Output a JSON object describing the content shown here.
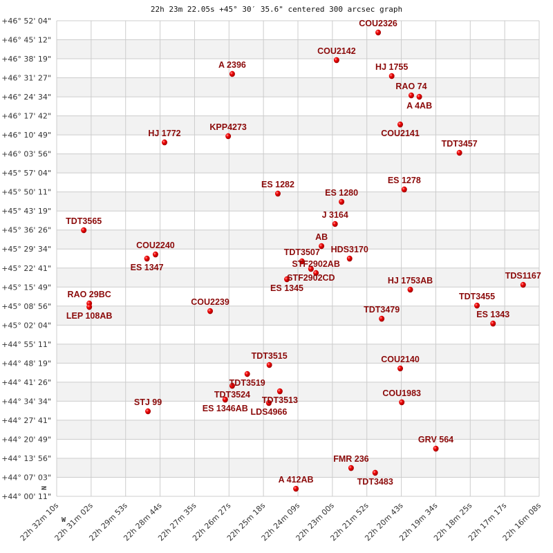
{
  "chart_data": {
    "type": "scatter",
    "title": "22h 23m 22.05s +45° 30′ 35.6\" centered 300 arcsec graph",
    "compass": {
      "north": "N",
      "west": "W"
    },
    "x_ticks": [
      "22h 32m 10s",
      "22h 31m 02s",
      "22h 29m 53s",
      "22h 28m 44s",
      "22h 27m 35s",
      "22h 26m 27s",
      "22h 25m 18s",
      "22h 24m 09s",
      "22h 23m 00s",
      "22h 21m 52s",
      "22h 20m 43s",
      "22h 19m 34s",
      "22h 18m 25s",
      "22h 17m 17s",
      "22h 16m 08s"
    ],
    "y_ticks": [
      "+46° 52' 04\"",
      "+46° 45' 12\"",
      "+46° 38' 19\"",
      "+46° 31' 27\"",
      "+46° 24' 34\"",
      "+46° 17' 42\"",
      "+46° 10' 49\"",
      "+46° 03' 56\"",
      "+45° 57' 04\"",
      "+45° 50' 11\"",
      "+45° 43' 19\"",
      "+45° 36' 26\"",
      "+45° 29' 34\"",
      "+45° 22' 41\"",
      "+45° 15' 49\"",
      "+45° 08' 56\"",
      "+45° 02' 04\"",
      "+44° 55' 11\"",
      "+44° 48' 19\"",
      "+44° 41' 26\"",
      "+44° 34' 34\"",
      "+44° 27' 41\"",
      "+44° 20' 49\"",
      "+44° 13' 56\"",
      "+44° 07' 03\"",
      "+44° 00' 11\""
    ],
    "xlim": [
      "22h 32m 10s",
      "22h 16m 08s"
    ],
    "ylim": [
      "+44° 00' 11\"",
      "+46° 52' 04\""
    ],
    "grid": true,
    "band_color": "#f2f2f2",
    "grid_color": "#cccccc",
    "point_color": "#e00000",
    "label_color": "#8b0a0a",
    "points": [
      {
        "name": "COU2326",
        "ra": "22h 21m 29s",
        "dec": "+46° 47' 49\""
      },
      {
        "name": "COU2142",
        "ra": "22h 22m 52s",
        "dec": "+46° 37' 50\""
      },
      {
        "name": "A  2396",
        "ra": "22h 26m 20s",
        "dec": "+46° 32' 50\""
      },
      {
        "name": "HJ 1755",
        "ra": "22h 21m 02s",
        "dec": "+46° 32' 05\""
      },
      {
        "name": "RAO  74",
        "ra": "22h 20m 23s",
        "dec": "+46° 25' 05\""
      },
      {
        "name": "A   4AB",
        "ra": "22h 20m 07s",
        "dec": "+46° 24' 35\""
      },
      {
        "name": "COU2141",
        "ra": "22h 20m 45s",
        "dec": "+46° 14' 35\""
      },
      {
        "name": "HJ 1772",
        "ra": "22h 28m 35s",
        "dec": "+46° 08' 06\""
      },
      {
        "name": "KPP4273",
        "ra": "22h 26m 28s",
        "dec": "+46° 10' 21\""
      },
      {
        "name": "TDT3457",
        "ra": "22h 18m 47s",
        "dec": "+46° 04' 21\""
      },
      {
        "name": "ES 1282",
        "ra": "22h 24m 49s",
        "dec": "+45° 49' 36\""
      },
      {
        "name": "ES 1278",
        "ra": "22h 20m 37s",
        "dec": "+45° 51' 06\""
      },
      {
        "name": "ES 1280",
        "ra": "22h 22m 42s",
        "dec": "+45° 46' 37\""
      },
      {
        "name": "J  3164",
        "ra": "22h 22m 55s",
        "dec": "+45° 38' 37\""
      },
      {
        "name": "TDT3565",
        "ra": "22h 31m 16s",
        "dec": "+45° 36' 22\""
      },
      {
        "name": "AB",
        "ra": "22h 23m 22s",
        "dec": "+45° 30' 37\""
      },
      {
        "name": "HDS3170",
        "ra": "22h 22m 26s",
        "dec": "+45° 26' 07\""
      },
      {
        "name": "COU2240",
        "ra": "22h 28m 53s",
        "dec": "+45° 27' 37\""
      },
      {
        "name": "ES 1347",
        "ra": "22h 29m 10s",
        "dec": "+45° 26' 07\""
      },
      {
        "name": "TDT3507",
        "ra": "22h 24m 01s",
        "dec": "+45° 25' 07\""
      },
      {
        "name": "STF2902CD",
        "ra": "22h 23m 43s",
        "dec": "+45° 22' 23\""
      },
      {
        "name": "STF2902AB",
        "ra": "22h 23m 33s",
        "dec": "+45° 20' 53\""
      },
      {
        "name": "ES 1345",
        "ra": "22h 24m 31s",
        "dec": "+45° 18' 38\""
      },
      {
        "name": "HJ 1753AB",
        "ra": "22h 20m 25s",
        "dec": "+45° 14' 53\""
      },
      {
        "name": "TDS1167",
        "ra": "22h 16m 40s",
        "dec": "+45° 16' 38\""
      },
      {
        "name": "RAO  29BC",
        "ra": "22h 31m 05s",
        "dec": "+45° 09' 53\""
      },
      {
        "name": "LEP 108AB",
        "ra": "22h 31m 05s",
        "dec": "+45° 08' 38\""
      },
      {
        "name": "COU2239",
        "ra": "22h 27m 04s",
        "dec": "+45° 07' 08\""
      },
      {
        "name": "TDT3479",
        "ra": "22h 21m 22s",
        "dec": "+45° 04' 23\""
      },
      {
        "name": "TDT3455",
        "ra": "22h 18m 12s",
        "dec": "+45° 09' 08\""
      },
      {
        "name": "ES 1343",
        "ra": "22h 17m 40s",
        "dec": "+45° 02' 38\""
      },
      {
        "name": "TDT3515",
        "ra": "22h 25m 06s",
        "dec": "+44° 47' 39\""
      },
      {
        "name": "TDT3519",
        "ra": "22h 25m 50s",
        "dec": "+44° 44' 24\""
      },
      {
        "name": "TDT3524",
        "ra": "22h 26m 20s",
        "dec": "+44° 40' 09\""
      },
      {
        "name": "ES 1346AB",
        "ra": "22h 26m 34s",
        "dec": "+44° 35' 09\""
      },
      {
        "name": "TDT3513",
        "ra": "22h 24m 45s",
        "dec": "+44° 38' 09\""
      },
      {
        "name": "LDS4966",
        "ra": "22h 25m 07s",
        "dec": "+44° 33' 55\""
      },
      {
        "name": "STJ  99",
        "ra": "22h 29m 08s",
        "dec": "+44° 30' 55\""
      },
      {
        "name": "COU2140",
        "ra": "22h 20m 45s",
        "dec": "+44° 46' 24\""
      },
      {
        "name": "COU1983",
        "ra": "22h 20m 42s",
        "dec": "+44° 34' 10\""
      },
      {
        "name": "GRV 564",
        "ra": "22h 19m 34s",
        "dec": "+44° 17' 25\""
      },
      {
        "name": "FMR 236",
        "ra": "22h 22m 23s",
        "dec": "+44° 10' 25\""
      },
      {
        "name": "TDT3483",
        "ra": "22h 21m 35s",
        "dec": "+44° 08' 41\""
      },
      {
        "name": "A   412AB",
        "ra": "22h 24m 13s",
        "dec": "+44° 02' 56\""
      }
    ]
  }
}
